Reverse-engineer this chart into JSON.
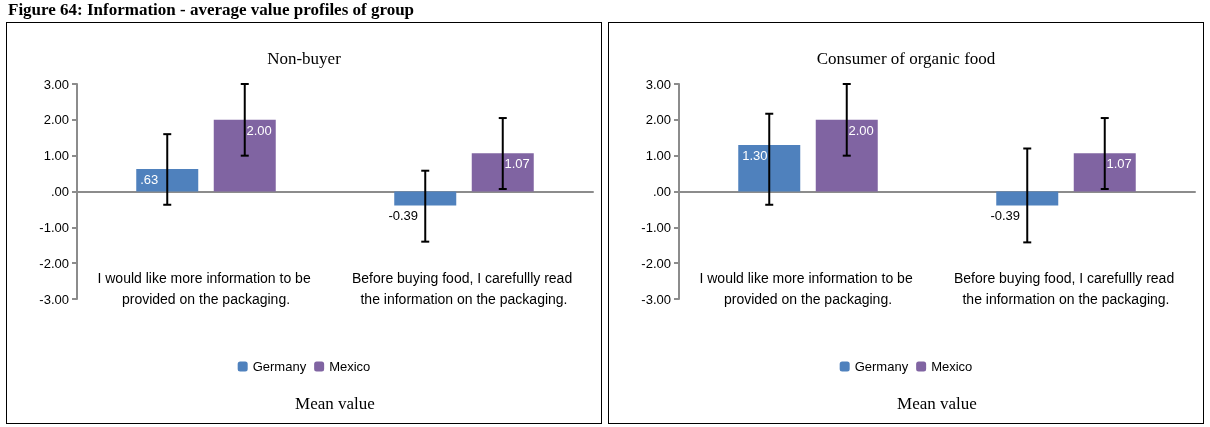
{
  "chart_data": [
    {
      "type": "bar",
      "title": "Non-buyer",
      "xlabel": "Mean value",
      "annotations": [
        "Figure 64: Information - average value profiles of group"
      ],
      "categories": [
        "I would like more information to be provided on the packaging.",
        "Before buying food, I carefullly read the information on the packaging."
      ],
      "series": [
        {
          "name": "Germany",
          "color": "#4f81bd",
          "values": [
            0.63,
            -0.39
          ],
          "value_labels": [
            ".63",
            "-0.39"
          ],
          "errors": [
            [
              -0.37,
              1.6
            ],
            [
              -1.4,
              0.58
            ]
          ]
        },
        {
          "name": "Mexico",
          "color": "#8064a2",
          "values": [
            2.0,
            1.07
          ],
          "value_labels": [
            "2.00",
            "1.07"
          ],
          "errors": [
            [
              1.0,
              3.0
            ],
            [
              0.07,
              2.05
            ]
          ]
        }
      ],
      "ylim": [
        -3,
        3
      ],
      "yticks": [
        {
          "value": -3,
          "label": "-3.00"
        },
        {
          "value": -2,
          "label": "-2.00"
        },
        {
          "value": -1,
          "label": "-1.00"
        },
        {
          "value": 0,
          "label": ".00"
        },
        {
          "value": 1,
          "label": "1.00"
        },
        {
          "value": 2,
          "label": "2.00"
        },
        {
          "value": 3,
          "label": "3.00"
        }
      ],
      "legend": "bottom"
    },
    {
      "type": "bar",
      "title": "Consumer of organic food",
      "xlabel": "Mean value",
      "categories": [
        "I would like more information to be provided on the packaging.",
        "Before buying food, I carefullly read the information on the packaging."
      ],
      "series": [
        {
          "name": "Germany",
          "color": "#4f81bd",
          "values": [
            1.3,
            -0.39
          ],
          "value_labels": [
            "1.30",
            "-0.39"
          ],
          "errors": [
            [
              -0.37,
              2.17
            ],
            [
              -1.42,
              1.2
            ]
          ]
        },
        {
          "name": "Mexico",
          "color": "#8064a2",
          "values": [
            2.0,
            1.07
          ],
          "value_labels": [
            "2.00",
            "1.07"
          ],
          "errors": [
            [
              1.0,
              3.0
            ],
            [
              0.07,
              2.05
            ]
          ]
        }
      ],
      "ylim": [
        -3,
        3
      ],
      "yticks": [
        {
          "value": -3,
          "label": "-3.00"
        },
        {
          "value": -2,
          "label": "-2.00"
        },
        {
          "value": -1,
          "label": "-1.00"
        },
        {
          "value": 0,
          "label": ".00"
        },
        {
          "value": 1,
          "label": "1.00"
        },
        {
          "value": 2,
          "label": "2.00"
        },
        {
          "value": 3,
          "label": "3.00"
        }
      ],
      "legend": "bottom"
    }
  ]
}
